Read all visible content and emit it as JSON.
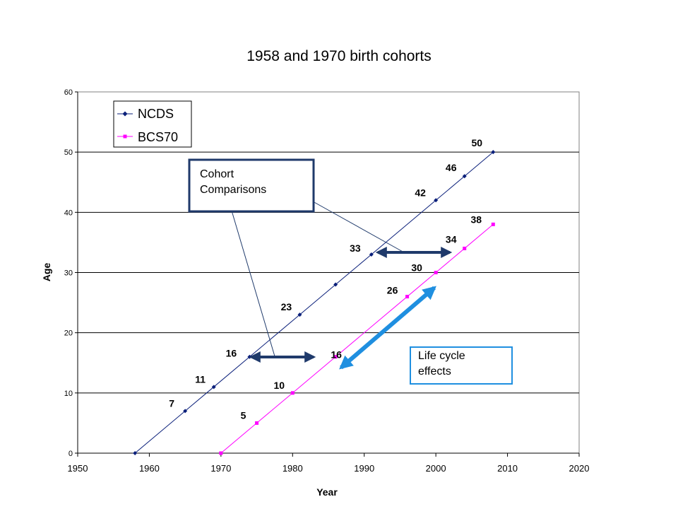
{
  "chart_data": {
    "type": "line",
    "title": "1958 and 1970 birth cohorts",
    "xlabel": "Year",
    "ylabel": "Age",
    "xlim": [
      1950,
      2020
    ],
    "ylim": [
      0,
      60
    ],
    "xticks": [
      "1950",
      "1960",
      "1970",
      "1980",
      "1990",
      "2000",
      "2010",
      "2020"
    ],
    "yticks": [
      "0",
      "10",
      "20",
      "30",
      "40",
      "50",
      "60"
    ],
    "grid": "horizontal",
    "legend_position": "top-left",
    "series": [
      {
        "name": "NCDS",
        "color": "#0a1f7a",
        "marker": "diamond",
        "x": [
          1958,
          1965,
          1969,
          1974,
          1981,
          1986,
          1991,
          2000,
          2004,
          2008
        ],
        "y": [
          0,
          7,
          11,
          16,
          23,
          28,
          33,
          42,
          46,
          50
        ],
        "labels": [
          "",
          "7",
          "11",
          "16",
          "23",
          "",
          "33",
          "42",
          "46",
          "50"
        ]
      },
      {
        "name": "BCS70",
        "color": "#ff00ff",
        "marker": "square",
        "x": [
          1970,
          1975,
          1980,
          1986,
          1996,
          2000,
          2004,
          2008
        ],
        "y": [
          0,
          5,
          10,
          16,
          26,
          30,
          34,
          38
        ],
        "labels": [
          "",
          "5",
          "10",
          "16",
          "26",
          "30",
          "34",
          "38"
        ]
      }
    ],
    "annotations": {
      "cohort_comparisons": "Cohort\nComparisons",
      "life_cycle_effects": "Life cycle\neffects"
    }
  }
}
